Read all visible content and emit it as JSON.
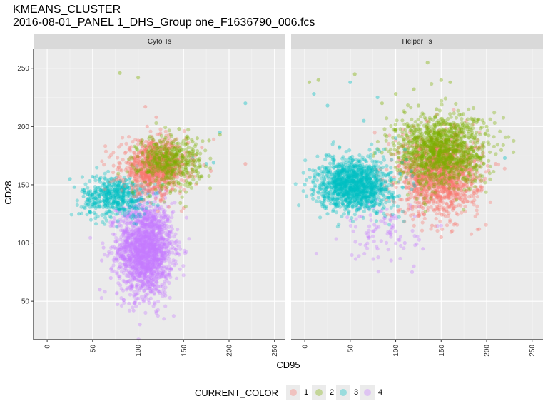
{
  "title": "KMEANS_CLUSTER",
  "subtitle": "2016-08-01_PANEL 1_DHS_Group one_F1636790_006.fcs",
  "chart_data": {
    "type": "scatter",
    "xlabel": "CD95",
    "ylabel": "CD28",
    "xlim": [
      -15,
      262
    ],
    "ylim": [
      17,
      267
    ],
    "x_ticks": [
      0,
      50,
      100,
      150,
      200,
      250
    ],
    "y_ticks": [
      50,
      100,
      150,
      200,
      250
    ],
    "grid": true,
    "legend": {
      "title": "CURRENT_COLOR",
      "position": "bottom",
      "entries": [
        {
          "label": "1",
          "color": "#F8766D"
        },
        {
          "label": "2",
          "color": "#7CAE00"
        },
        {
          "label": "3",
          "color": "#00BFC4"
        },
        {
          "label": "4",
          "color": "#C77CFF"
        }
      ]
    },
    "facets": [
      {
        "label": "Cyto Ts",
        "clusters": [
          {
            "cluster": "4",
            "center": [
              108,
              95
            ],
            "spread": [
              15,
              20
            ],
            "n": 1800,
            "outliers": [
              [
                72,
                117
              ],
              [
                75,
                128
              ],
              [
                62,
                96
              ],
              [
                58,
                60
              ],
              [
                70,
                70
              ],
              [
                60,
                85
              ],
              [
                95,
                42
              ],
              [
                102,
                30
              ],
              [
                140,
                100
              ],
              [
                145,
                90
              ],
              [
                135,
                110
              ],
              [
                90,
                48
              ],
              [
                130,
                55
              ],
              [
                120,
                40
              ]
            ]
          },
          {
            "cluster": "3",
            "center": [
              75,
              140
            ],
            "spread": [
              18,
              9
            ],
            "n": 500,
            "outliers": [
              [
                25,
                155
              ],
              [
                30,
                148
              ],
              [
                35,
                125
              ],
              [
                40,
                140
              ],
              [
                45,
                133
              ],
              [
                50,
                157
              ],
              [
                190,
                195
              ],
              [
                183,
                169
              ],
              [
                218,
                220
              ],
              [
                160,
                173
              ],
              [
                175,
                168
              ],
              [
                120,
                158
              ]
            ]
          },
          {
            "cluster": "1",
            "center": [
              118,
              165
            ],
            "spread": [
              18,
              11
            ],
            "n": 900,
            "outliers": [
              [
                108,
                217
              ],
              [
                110,
                200
              ],
              [
                120,
                208
              ],
              [
                130,
                185
              ],
              [
                140,
                188
              ],
              [
                150,
                130
              ],
              [
                163,
                175
              ],
              [
                218,
                168
              ],
              [
                180,
                162
              ],
              [
                170,
                182
              ],
              [
                100,
                188
              ],
              [
                95,
                140
              ]
            ]
          },
          {
            "cluster": "2",
            "center": [
              135,
              170
            ],
            "spread": [
              17,
              11
            ],
            "n": 450,
            "outliers": [
              [
                80,
                246
              ],
              [
                100,
                242
              ],
              [
                165,
                190
              ],
              [
                178,
                188
              ],
              [
                190,
                193
              ],
              [
                160,
                187
              ],
              [
                155,
                190
              ],
              [
                145,
                198
              ]
            ]
          }
        ]
      },
      {
        "label": "Helper Ts",
        "clusters": [
          {
            "cluster": "4",
            "center": [
              85,
              110
            ],
            "spread": [
              20,
              13
            ],
            "n": 90,
            "outliers": [
              [
                75,
                110
              ],
              [
                80,
                95
              ],
              [
                100,
                110
              ],
              [
                95,
                85
              ],
              [
                130,
                95
              ],
              [
                120,
                80
              ],
              [
                110,
                100
              ],
              [
                60,
                130
              ],
              [
                150,
                115
              ],
              [
                118,
                75
              ]
            ]
          },
          {
            "cluster": "1",
            "center": [
              148,
              158
            ],
            "spread": [
              22,
              17
            ],
            "n": 1300,
            "outliers": [
              [
                120,
                200
              ],
              [
                110,
                170
              ],
              [
                130,
                130
              ],
              [
                140,
                115
              ],
              [
                150,
                105
              ],
              [
                195,
                148
              ],
              [
                210,
                168
              ],
              [
                178,
                182
              ],
              [
                175,
                135
              ],
              [
                100,
                188
              ]
            ]
          },
          {
            "cluster": "2",
            "center": [
              150,
              180
            ],
            "spread": [
              25,
              15
            ],
            "n": 1200,
            "outliers": [
              [
                5,
                238
              ],
              [
                15,
                240
              ],
              [
                55,
                245
              ],
              [
                100,
                228
              ],
              [
                120,
                232
              ],
              [
                135,
                255
              ],
              [
                150,
                240
              ],
              [
                160,
                238
              ],
              [
                170,
                210
              ],
              [
                190,
                205
              ],
              [
                200,
                200
              ],
              [
                145,
                215
              ],
              [
                125,
                218
              ],
              [
                110,
                212
              ],
              [
                85,
                220
              ]
            ]
          },
          {
            "cluster": "3",
            "center": [
              55,
              150
            ],
            "spread": [
              20,
              11
            ],
            "n": 1300,
            "outliers": [
              [
                0,
                150
              ],
              [
                5,
                163
              ],
              [
                10,
                228
              ],
              [
                25,
                218
              ],
              [
                50,
                238
              ],
              [
                80,
                225
              ],
              [
                100,
                190
              ],
              [
                110,
                180
              ],
              [
                65,
                205
              ],
              [
                220,
                173
              ],
              [
                10,
                145
              ],
              [
                25,
                125
              ]
            ]
          }
        ]
      }
    ]
  }
}
